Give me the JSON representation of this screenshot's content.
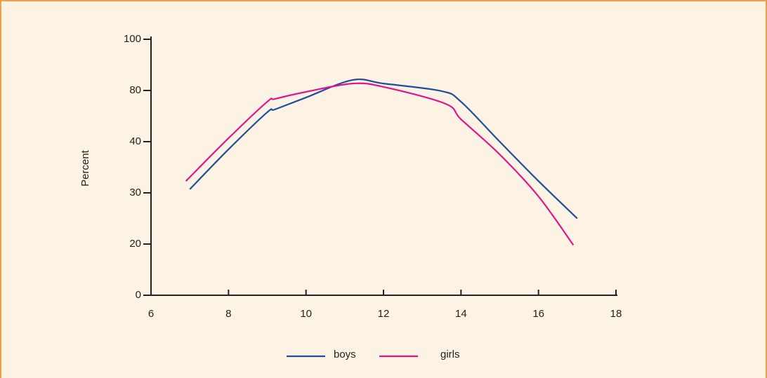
{
  "chart_data": {
    "type": "line",
    "ylabel": "Percent",
    "xlim": [
      6,
      18
    ],
    "xticks": [
      6,
      8,
      10,
      12,
      14,
      16,
      18
    ],
    "ylim": [
      0,
      100
    ],
    "yticks": [
      0,
      20,
      30,
      40,
      80,
      100
    ],
    "legend": "bottom",
    "series": [
      {
        "name": "boys",
        "color": "#1f4e9c",
        "x": [
          7,
          8,
          9,
          9.2,
          10,
          11.2,
          12,
          13.5,
          14,
          15,
          16,
          17
        ],
        "values": [
          30.7,
          38.5,
          63,
          65.2,
          74.5,
          84.1,
          82.7,
          79.5,
          71.2,
          40,
          32.3,
          25
        ]
      },
      {
        "name": "girls",
        "color": "#e0158c",
        "x": [
          6.9,
          8,
          9,
          9.2,
          10,
          11.2,
          12,
          13.6,
          14,
          15,
          16,
          16.9
        ],
        "values": [
          32.3,
          42.7,
          71.2,
          73.4,
          78.9,
          82.7,
          81.4,
          69.6,
          57.5,
          37.5,
          29.3,
          19.6
        ]
      }
    ]
  }
}
